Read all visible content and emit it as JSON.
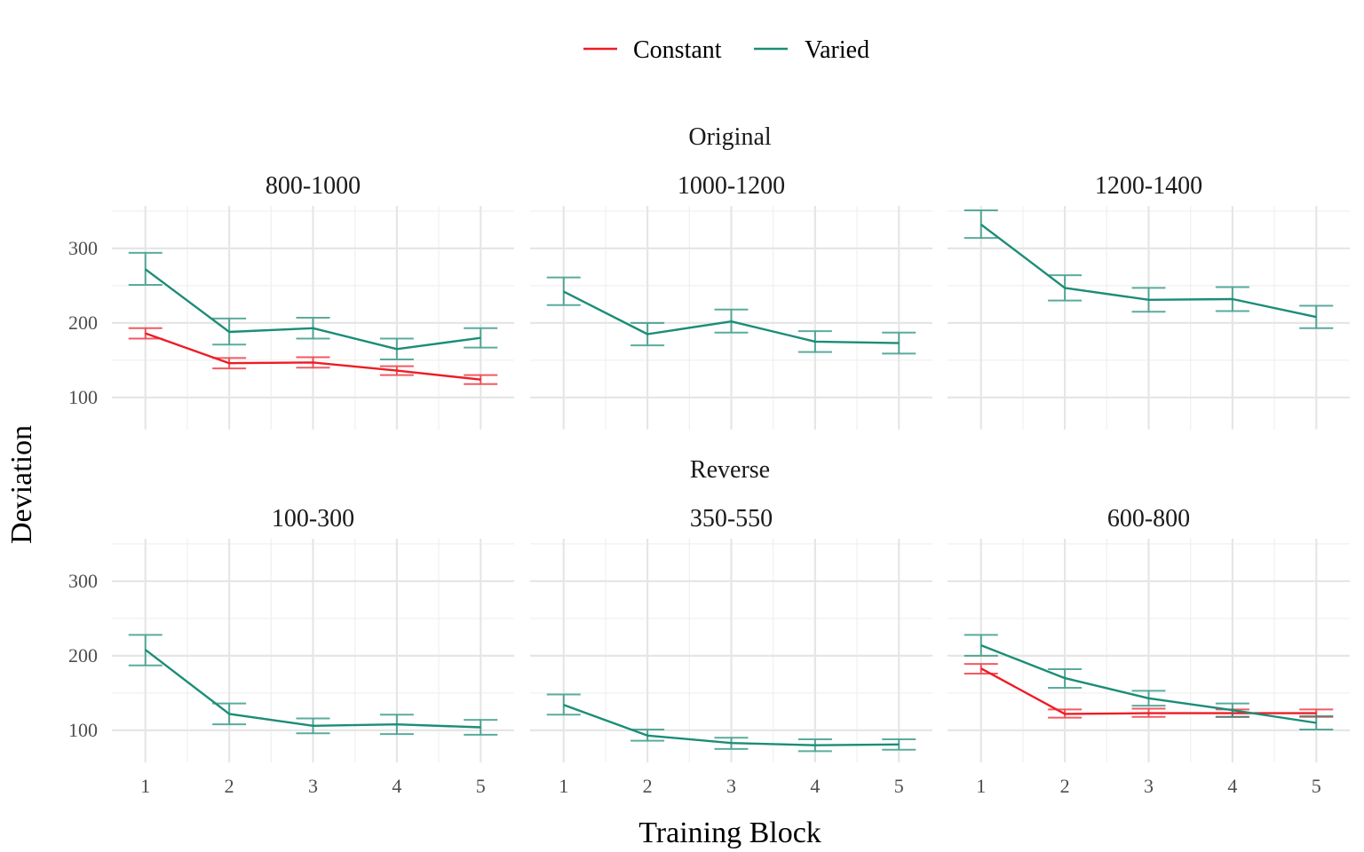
{
  "chart_data": {
    "type": "line",
    "legend": {
      "placement": "top",
      "entries": [
        {
          "name": "Constant",
          "color": "#ee1c25"
        },
        {
          "name": "Varied",
          "color": "#1b8d77"
        }
      ]
    },
    "xlabel": "Training Block",
    "ylabel": "Deviation",
    "x_ticks": [
      1,
      2,
      3,
      4,
      5
    ],
    "y_ticks": [
      100,
      200,
      300
    ],
    "xlim": [
      0.6,
      5.4
    ],
    "ylim": [
      57,
      357
    ],
    "grid": true,
    "rows": [
      {
        "label": "Original",
        "panels": [
          "800-1000",
          "1000-1200",
          "1200-1400"
        ]
      },
      {
        "label": "Reverse",
        "panels": [
          "100-300",
          "350-550",
          "600-800"
        ]
      }
    ],
    "panels": [
      {
        "title": "800-1000",
        "series": [
          {
            "name": "Constant",
            "values": [
              186,
              146,
              147,
              136,
              124
            ],
            "lower": [
              179,
              139,
              140,
              130,
              118
            ],
            "upper": [
              193,
              153,
              154,
              142,
              130
            ]
          },
          {
            "name": "Varied",
            "values": [
              272,
              188,
              193,
              165,
              180
            ],
            "lower": [
              251,
              171,
              179,
              151,
              167
            ],
            "upper": [
              294,
              206,
              207,
              179,
              193
            ]
          }
        ]
      },
      {
        "title": "1000-1200",
        "series": [
          {
            "name": "Varied",
            "values": [
              242,
              185,
              202,
              175,
              173
            ],
            "lower": [
              224,
              170,
              187,
              161,
              159
            ],
            "upper": [
              261,
              200,
              218,
              189,
              187
            ]
          }
        ]
      },
      {
        "title": "1200-1400",
        "series": [
          {
            "name": "Varied",
            "values": [
              332,
              247,
              231,
              232,
              208
            ],
            "lower": [
              314,
              230,
              215,
              216,
              193
            ],
            "upper": [
              351,
              264,
              247,
              248,
              223
            ]
          }
        ]
      },
      {
        "title": "100-300",
        "series": [
          {
            "name": "Varied",
            "values": [
              208,
              122,
              106,
              108,
              104
            ],
            "lower": [
              187,
              108,
              96,
              95,
              94
            ],
            "upper": [
              228,
              136,
              116,
              121,
              114
            ]
          }
        ]
      },
      {
        "title": "350-550",
        "series": [
          {
            "name": "Varied",
            "values": [
              134,
              93,
              83,
              80,
              81
            ],
            "lower": [
              121,
              86,
              75,
              72,
              74
            ],
            "upper": [
              148,
              101,
              90,
              88,
              88
            ]
          }
        ]
      },
      {
        "title": "600-800",
        "series": [
          {
            "name": "Constant",
            "values": [
              183,
              122,
              123,
              123,
              123
            ],
            "lower": [
              176,
              117,
              118,
              118,
              118
            ],
            "upper": [
              189,
              128,
              129,
              128,
              128
            ]
          },
          {
            "name": "Varied",
            "values": [
              214,
              170,
              143,
              127,
              110
            ],
            "lower": [
              200,
              157,
              133,
              118,
              101
            ],
            "upper": [
              228,
              182,
              153,
              136,
              119
            ]
          }
        ]
      }
    ]
  }
}
